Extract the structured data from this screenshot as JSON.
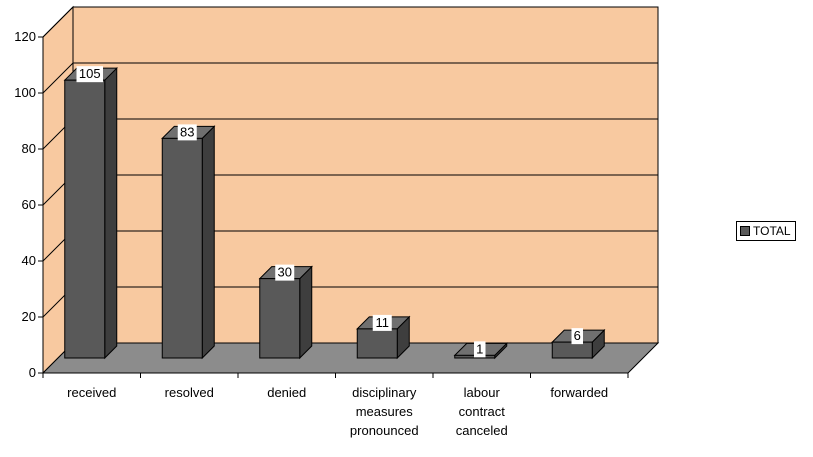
{
  "chart_data": {
    "type": "bar",
    "categories": [
      [
        "received"
      ],
      [
        "resolved"
      ],
      [
        "denied"
      ],
      [
        "disciplinary",
        "measures",
        "pronounced"
      ],
      [
        "labour",
        "contract",
        "canceled"
      ],
      [
        "forwarded"
      ]
    ],
    "series": [
      {
        "name": "TOTAL",
        "values": [
          105,
          83,
          30,
          11,
          1,
          6
        ]
      }
    ],
    "ylim": [
      0,
      120
    ],
    "yticks": [
      "0",
      "20",
      "40",
      "60",
      "80",
      "100",
      "120"
    ],
    "grid": true,
    "legend_position": "right",
    "colors": {
      "wall": "#F8C9A0",
      "floor": "#8C8C8C",
      "bar_front": "#595959",
      "bar_top": "#707070",
      "bar_side": "#3E3E3E"
    }
  }
}
